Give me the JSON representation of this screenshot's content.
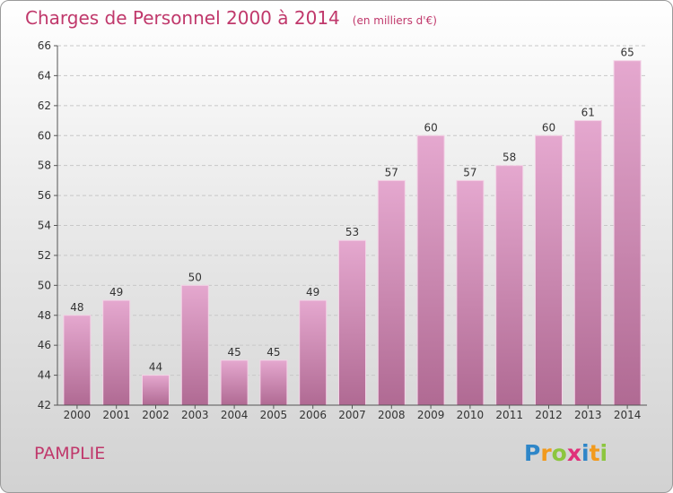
{
  "header": {
    "title": "Charges de Personnel 2000 à 2014",
    "unit": "(en milliers d'€)"
  },
  "footer": {
    "place": "PAMPLIE",
    "logo": {
      "letters": [
        "P",
        "r",
        "o",
        "x",
        "i",
        "t",
        "i"
      ],
      "colors": [
        "#2e86c8",
        "#f29a1c",
        "#8cc63f",
        "#e0307a",
        "#2e86c8",
        "#f29a1c",
        "#8cc63f"
      ]
    }
  },
  "chart_data": {
    "type": "bar",
    "categories": [
      "2000",
      "2001",
      "2002",
      "2003",
      "2004",
      "2005",
      "2006",
      "2007",
      "2008",
      "2009",
      "2010",
      "2011",
      "2012",
      "2013",
      "2014"
    ],
    "values": [
      48,
      49,
      44,
      50,
      45,
      45,
      49,
      53,
      57,
      60,
      57,
      58,
      60,
      61,
      65
    ],
    "ylim": [
      42,
      66
    ],
    "yticks": [
      42,
      44,
      46,
      48,
      50,
      52,
      54,
      56,
      58,
      60,
      62,
      64,
      66
    ],
    "grid": true,
    "bar_color": "#d98bb8",
    "title": "Charges de Personnel 2000 à 2014",
    "xlabel": "",
    "ylabel": ""
  }
}
